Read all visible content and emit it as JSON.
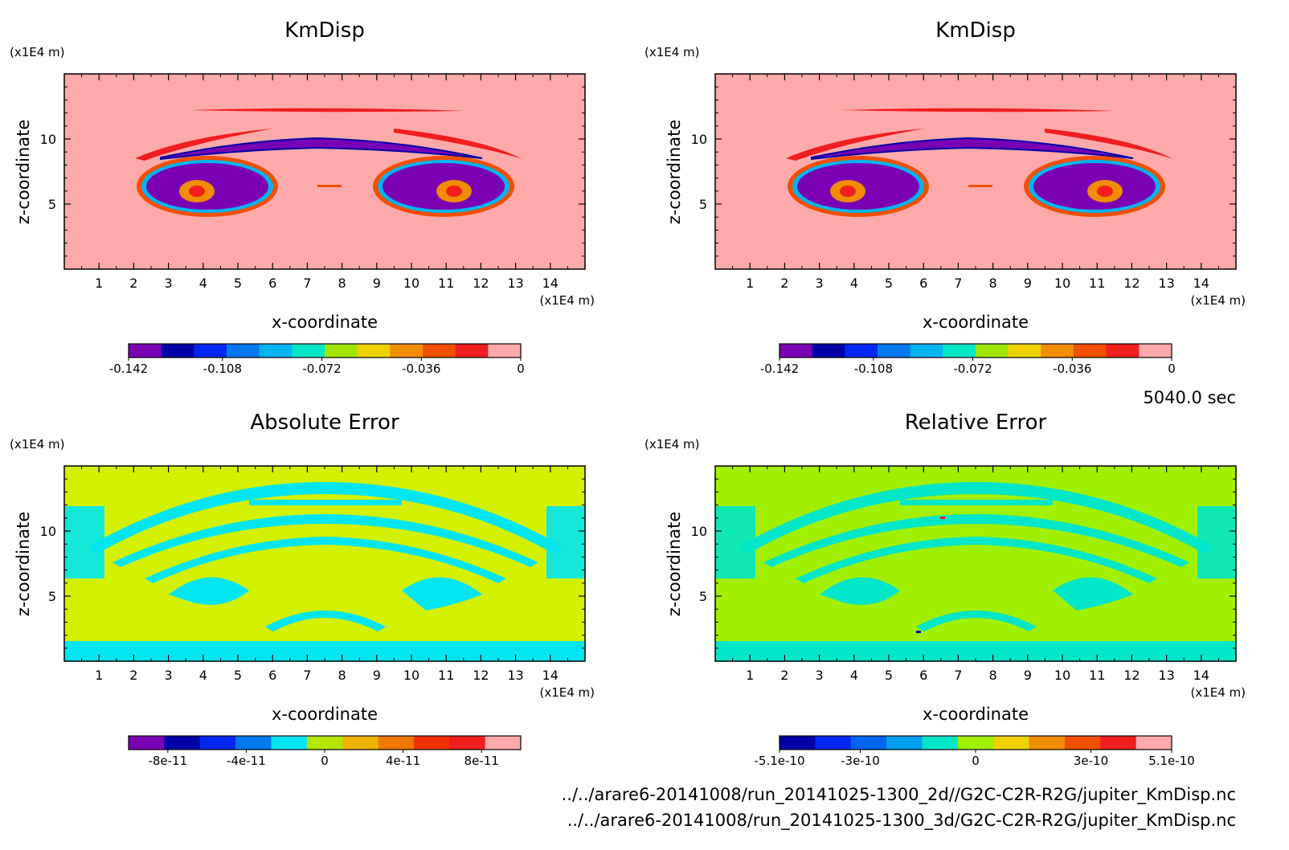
{
  "time_label": "5040.0 sec",
  "footer": {
    "file1": "../../arare6-20141008/run_20141025-1300_2d//G2C-C2R-R2G/jupiter_KmDisp.nc",
    "file2": "../../arare6-20141008/run_20141025-1300_3d/G2C-C2R-R2G/jupiter_KmDisp.nc"
  },
  "chart_data": [
    {
      "type": "heatmap",
      "title": "KmDisp",
      "xlabel": "x-coordinate",
      "ylabel": "z-coordinate",
      "x_unit": "(x1E4 m)",
      "y_unit": "(x1E4 m)",
      "xlim": [
        0,
        15
      ],
      "ylim": [
        0,
        15
      ],
      "x_ticks": [
        "1",
        "2",
        "3",
        "4",
        "5",
        "6",
        "7",
        "8",
        "9",
        "10",
        "11",
        "12",
        "13",
        "14"
      ],
      "y_ticks": [
        "5",
        "10"
      ],
      "colorbar": {
        "colors": [
          "#7a00b4",
          "#0000a8",
          "#0028f0",
          "#0078f0",
          "#00b4f0",
          "#00e6c8",
          "#a0e600",
          "#f0d200",
          "#f08c00",
          "#f05000",
          "#f01e1e",
          "#ffaaaa"
        ],
        "tick_labels": [
          "-0.142",
          "-0.108",
          "-0.072",
          "-0.036",
          "0"
        ],
        "range": [
          -0.142,
          0
        ]
      },
      "background_color": "#ffaaaa"
    },
    {
      "type": "heatmap",
      "title": "KmDisp",
      "xlabel": "x-coordinate",
      "ylabel": "z-coordinate",
      "x_unit": "(x1E4 m)",
      "y_unit": "(x1E4 m)",
      "xlim": [
        0,
        15
      ],
      "ylim": [
        0,
        15
      ],
      "x_ticks": [
        "1",
        "2",
        "3",
        "4",
        "5",
        "6",
        "7",
        "8",
        "9",
        "10",
        "11",
        "12",
        "13",
        "14"
      ],
      "y_ticks": [
        "5",
        "10"
      ],
      "colorbar": {
        "colors": [
          "#7a00b4",
          "#0000a8",
          "#0028f0",
          "#0078f0",
          "#00b4f0",
          "#00e6c8",
          "#a0e600",
          "#f0d200",
          "#f08c00",
          "#f05000",
          "#f01e1e",
          "#ffaaaa"
        ],
        "tick_labels": [
          "-0.142",
          "-0.108",
          "-0.072",
          "-0.036",
          "0"
        ],
        "range": [
          -0.142,
          0
        ]
      },
      "background_color": "#ffaaaa"
    },
    {
      "type": "heatmap",
      "title": "Absolute Error",
      "xlabel": "x-coordinate",
      "ylabel": "z-coordinate",
      "x_unit": "(x1E4 m)",
      "y_unit": "(x1E4 m)",
      "xlim": [
        0,
        15
      ],
      "ylim": [
        0,
        15
      ],
      "x_ticks": [
        "1",
        "2",
        "3",
        "4",
        "5",
        "6",
        "7",
        "8",
        "9",
        "10",
        "11",
        "12",
        "13",
        "14"
      ],
      "y_ticks": [
        "5",
        "10"
      ],
      "colorbar": {
        "colors": [
          "#7a00b4",
          "#0000a8",
          "#0028f0",
          "#0078f0",
          "#00e6f0",
          "#b4e600",
          "#f0b400",
          "#f07800",
          "#f03200",
          "#f01e1e",
          "#ffaaaa"
        ],
        "tick_labels": [
          "-8e-11",
          "-4e-11",
          "0",
          "4e-11",
          "8e-11"
        ],
        "range": [
          -1e-10,
          1e-10
        ]
      },
      "background_color": "#d2f000",
      "pattern_color": "#00e6f0"
    },
    {
      "type": "heatmap",
      "title": "Relative Error",
      "xlabel": "x-coordinate",
      "ylabel": "z-coordinate",
      "x_unit": "(x1E4 m)",
      "y_unit": "(x1E4 m)",
      "xlim": [
        0,
        15
      ],
      "ylim": [
        0,
        15
      ],
      "x_ticks": [
        "1",
        "2",
        "3",
        "4",
        "5",
        "6",
        "7",
        "8",
        "9",
        "10",
        "11",
        "12",
        "13",
        "14"
      ],
      "y_ticks": [
        "5",
        "10"
      ],
      "colorbar": {
        "colors": [
          "#0000a8",
          "#0028f0",
          "#0064f0",
          "#00a0f0",
          "#00e6c8",
          "#a0f000",
          "#f0d200",
          "#f08c00",
          "#f05000",
          "#f01e1e",
          "#ffaaaa"
        ],
        "tick_labels": [
          "-5.1e-10",
          "-3e-10",
          "0",
          "3e-10",
          "5.1e-10"
        ],
        "range": [
          -5.1e-10,
          5.1e-10
        ]
      },
      "background_color": "#a0f000",
      "pattern_color": "#00e6c8"
    }
  ]
}
